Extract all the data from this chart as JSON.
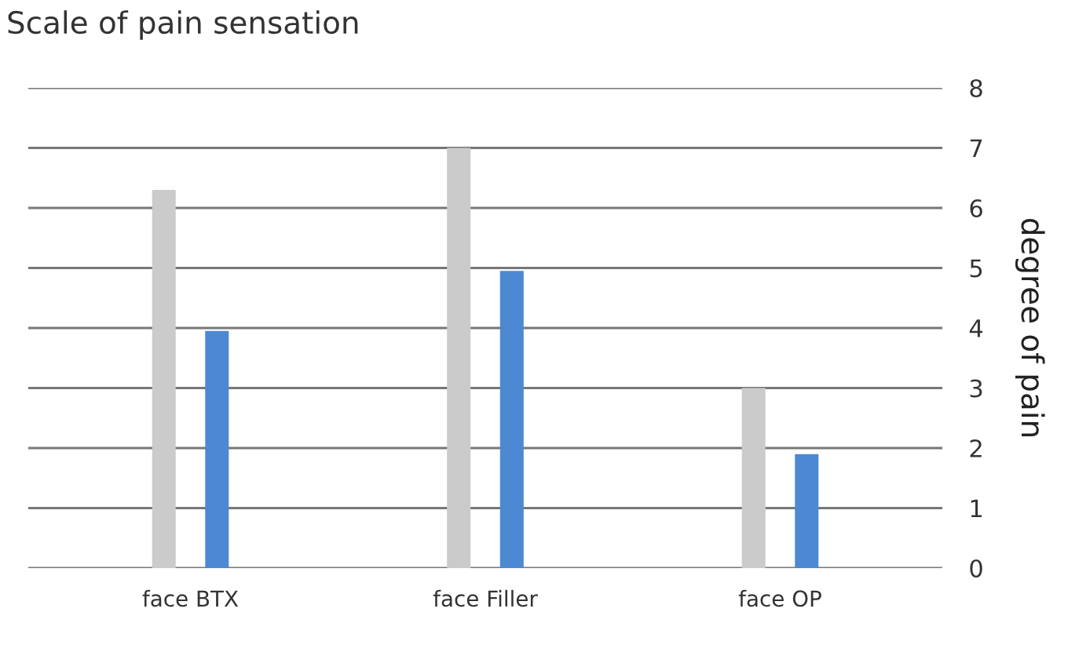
{
  "chart_data": {
    "type": "bar",
    "title": "Scale of pain sensation",
    "ylabel": "degree of pain",
    "categories": [
      "face BTX",
      "face Filler",
      "face OP"
    ],
    "series": [
      {
        "color": "#cbcbcb",
        "values": [
          6.3,
          7.0,
          3.0
        ]
      },
      {
        "color": "#4d88d2",
        "values": [
          3.95,
          4.95,
          1.9
        ]
      }
    ],
    "ylim": [
      0,
      8
    ],
    "yticks": [
      0,
      1,
      2,
      3,
      4,
      5,
      6,
      7,
      8
    ],
    "grid": "y"
  }
}
